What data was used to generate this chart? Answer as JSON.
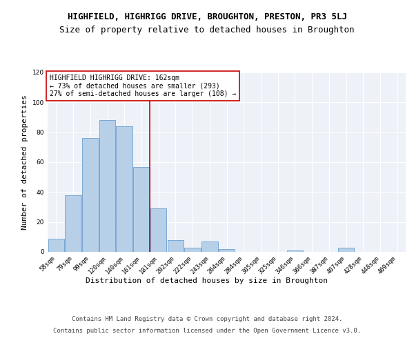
{
  "title": "HIGHFIELD, HIGHRIGG DRIVE, BROUGHTON, PRESTON, PR3 5LJ",
  "subtitle": "Size of property relative to detached houses in Broughton",
  "xlabel": "Distribution of detached houses by size in Broughton",
  "ylabel": "Number of detached properties",
  "bar_labels": [
    "58sqm",
    "79sqm",
    "99sqm",
    "120sqm",
    "140sqm",
    "161sqm",
    "181sqm",
    "202sqm",
    "222sqm",
    "243sqm",
    "264sqm",
    "284sqm",
    "305sqm",
    "325sqm",
    "346sqm",
    "366sqm",
    "387sqm",
    "407sqm",
    "428sqm",
    "448sqm",
    "469sqm"
  ],
  "bar_values": [
    9,
    38,
    76,
    88,
    84,
    57,
    29,
    8,
    3,
    7,
    2,
    0,
    0,
    0,
    1,
    0,
    0,
    3,
    0,
    0,
    0
  ],
  "bar_color": "#b8cfe8",
  "bar_edge_color": "#6a9fcf",
  "vline_color": "#cc0000",
  "annotation_text": "HIGHFIELD HIGHRIGG DRIVE: 162sqm\n← 73% of detached houses are smaller (293)\n27% of semi-detached houses are larger (108) →",
  "annotation_box_color": "#ffffff",
  "annotation_box_edge": "#cc0000",
  "ylim": [
    0,
    120
  ],
  "yticks": [
    0,
    20,
    40,
    60,
    80,
    100,
    120
  ],
  "footer1": "Contains HM Land Registry data © Crown copyright and database right 2024.",
  "footer2": "Contains public sector information licensed under the Open Government Licence v3.0.",
  "plot_bg_color": "#eef2f8",
  "title_fontsize": 9,
  "subtitle_fontsize": 9,
  "label_fontsize": 8,
  "tick_fontsize": 6.5,
  "annotation_fontsize": 7,
  "footer_fontsize": 6.5
}
